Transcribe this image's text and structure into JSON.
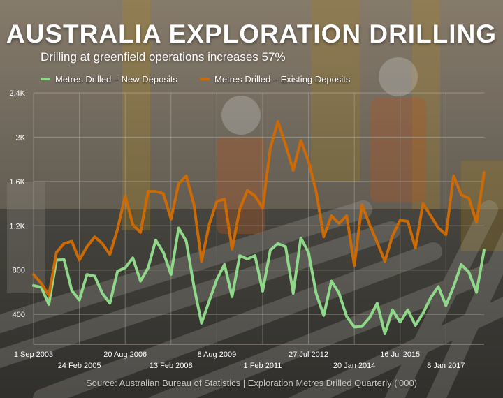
{
  "page": {
    "title": "AUSTRALIA EXPLORATION DRILLING",
    "subtitle": "Drilling at greenfield operations increases 57%",
    "source": "Source: Australian Bureau of Statistics | Exploration Metres Drilled Quarterly ('000)"
  },
  "colors": {
    "new_deposits": "#8fd88a",
    "existing_deposits": "#cc6a06",
    "axis_text": "#ffffff",
    "grid": "#b8b2a8"
  },
  "chart_data": {
    "type": "line",
    "title": "AUSTRALIA EXPLORATION DRILLING",
    "subtitle": "Drilling at greenfield operations increases 57%",
    "x_start": "2003-09",
    "x_step_months": 3,
    "y_ticks": [
      400,
      800,
      "1.2K",
      "1.6K",
      "2K",
      "2.4K"
    ],
    "y_tick_values": [
      400,
      800,
      1200,
      1600,
      2000,
      2400
    ],
    "ylim": [
      130,
      2400
    ],
    "x_tick_labels": [
      {
        "label": "1 Sep 2003",
        "row": 0,
        "index": 0
      },
      {
        "label": "24 Feb 2005",
        "row": 1,
        "index": 6
      },
      {
        "label": "20 Aug 2006",
        "row": 0,
        "index": 12
      },
      {
        "label": "13 Feb 2008",
        "row": 1,
        "index": 18
      },
      {
        "label": "8 Aug 2009",
        "row": 0,
        "index": 24
      },
      {
        "label": "1 Feb 2011",
        "row": 1,
        "index": 30
      },
      {
        "label": "27 Jul 2012",
        "row": 0,
        "index": 36
      },
      {
        "label": "20 Jan 2014",
        "row": 1,
        "index": 42
      },
      {
        "label": "16 Jul 2015",
        "row": 0,
        "index": 48
      },
      {
        "label": "8 Jan 2017",
        "row": 1,
        "index": 54
      }
    ],
    "grid": true,
    "legend_position": "top-left",
    "series": [
      {
        "name": "Metres Drilled – New Deposits",
        "color": "#8fd88a",
        "values": [
          660,
          645,
          490,
          890,
          895,
          615,
          530,
          760,
          745,
          590,
          500,
          790,
          820,
          910,
          700,
          820,
          1070,
          960,
          760,
          1180,
          1060,
          650,
          320,
          520,
          715,
          850,
          560,
          930,
          900,
          930,
          610,
          980,
          1040,
          1010,
          590,
          1090,
          960,
          590,
          390,
          700,
          590,
          380,
          285,
          290,
          370,
          500,
          225,
          440,
          330,
          440,
          300,
          410,
          550,
          650,
          480,
          650,
          850,
          780,
          600,
          980
        ]
      },
      {
        "name": "Metres Drilled – Existing Deposits",
        "color": "#cc6a06",
        "values": [
          760,
          680,
          570,
          960,
          1040,
          1060,
          890,
          1010,
          1100,
          1040,
          940,
          1170,
          1470,
          1210,
          1140,
          1510,
          1510,
          1490,
          1260,
          1580,
          1650,
          1390,
          880,
          1210,
          1420,
          1440,
          990,
          1350,
          1520,
          1470,
          1360,
          1900,
          2140,
          1930,
          1700,
          1970,
          1780,
          1510,
          1100,
          1290,
          1220,
          1290,
          840,
          1390,
          1210,
          1050,
          880,
          1110,
          1250,
          1240,
          1000,
          1400,
          1290,
          1180,
          1120,
          1650,
          1480,
          1450,
          1230,
          1680
        ]
      }
    ]
  }
}
